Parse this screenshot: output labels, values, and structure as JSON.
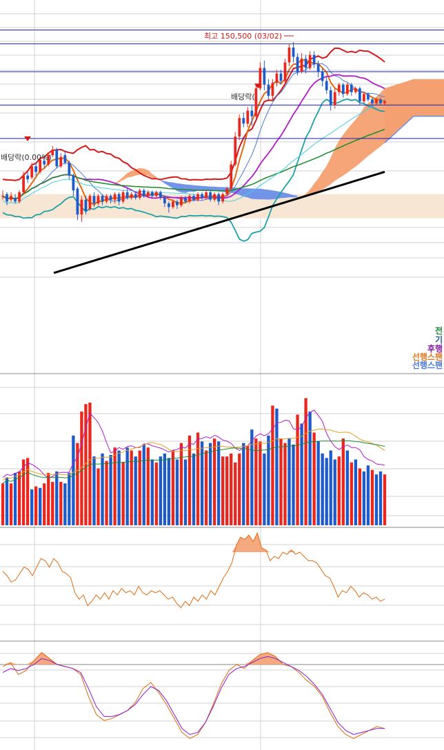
{
  "annotations": {
    "high_label": "최고 150,500 (03/02)",
    "dividend_label_left": "배당락(0.00%)",
    "dividend_label_right": "배당락(",
    "legend_items": [
      {
        "text": "전",
        "color": "#1a8a3a"
      },
      {
        "text": "기",
        "color": "#1a5aa8"
      },
      {
        "text": "후행",
        "color": "#8a1aa8"
      },
      {
        "text": "선행스팬",
        "color": "#e07820"
      },
      {
        "text": "선행스팬",
        "color": "#4a7ad8"
      }
    ]
  },
  "colors": {
    "up": "#e8281e",
    "down": "#1e5ac8",
    "grid": "#d0d0d0",
    "hline": "#1e1eb4",
    "cloud_up": "#f4a070",
    "cloud_down": "#6a8ee8",
    "band": "#f7e6d4"
  },
  "chart_data": [
    {
      "type": "candlestick",
      "panel": "price",
      "n_bars": 93,
      "candles": [
        {
          "o": 0.86,
          "c": 0.86,
          "h": 0.92,
          "l": 0.82
        },
        {
          "o": 0.88,
          "c": 0.8,
          "h": 0.9,
          "l": 0.76
        },
        {
          "o": 0.82,
          "c": 0.86,
          "h": 0.9,
          "l": 0.8
        },
        {
          "o": 0.84,
          "c": 0.8,
          "h": 0.88,
          "l": 0.78
        },
        {
          "o": 0.8,
          "c": 0.9,
          "h": 0.92,
          "l": 0.78
        },
        {
          "o": 0.9,
          "c": 1.08,
          "h": 1.12,
          "l": 0.88
        },
        {
          "o": 1.08,
          "c": 1.04,
          "h": 1.12,
          "l": 1.0
        },
        {
          "o": 1.06,
          "c": 1.18,
          "h": 1.22,
          "l": 1.04
        },
        {
          "o": 1.18,
          "c": 1.12,
          "h": 1.22,
          "l": 1.08
        },
        {
          "o": 1.12,
          "c": 1.25,
          "h": 1.28,
          "l": 1.1
        },
        {
          "o": 1.24,
          "c": 1.2,
          "h": 1.28,
          "l": 1.16
        },
        {
          "o": 1.2,
          "c": 1.3,
          "h": 1.33,
          "l": 1.18
        },
        {
          "o": 1.3,
          "c": 1.36,
          "h": 1.4,
          "l": 1.28
        },
        {
          "o": 1.36,
          "c": 1.18,
          "h": 1.38,
          "l": 1.16
        },
        {
          "o": 1.18,
          "c": 1.28,
          "h": 1.32,
          "l": 1.16
        },
        {
          "o": 1.3,
          "c": 1.22,
          "h": 1.34,
          "l": 1.2
        },
        {
          "o": 1.22,
          "c": 1.08,
          "h": 1.24,
          "l": 1.04
        },
        {
          "o": 1.08,
          "c": 0.92,
          "h": 1.1,
          "l": 0.86
        },
        {
          "o": 0.94,
          "c": 0.66,
          "h": 0.96,
          "l": 0.6
        },
        {
          "o": 0.66,
          "c": 0.82,
          "h": 0.86,
          "l": 0.58
        },
        {
          "o": 0.82,
          "c": 0.7,
          "h": 0.86,
          "l": 0.66
        },
        {
          "o": 0.72,
          "c": 0.86,
          "h": 0.88,
          "l": 0.7
        },
        {
          "o": 0.86,
          "c": 0.78,
          "h": 0.9,
          "l": 0.74
        },
        {
          "o": 0.78,
          "c": 0.86,
          "h": 0.88,
          "l": 0.76
        },
        {
          "o": 0.86,
          "c": 0.8,
          "h": 0.88,
          "l": 0.76
        },
        {
          "o": 0.8,
          "c": 0.86,
          "h": 0.88,
          "l": 0.78
        },
        {
          "o": 0.86,
          "c": 0.82,
          "h": 0.88,
          "l": 0.78
        },
        {
          "o": 0.82,
          "c": 0.88,
          "h": 0.9,
          "l": 0.78
        },
        {
          "o": 0.88,
          "c": 0.8,
          "h": 0.9,
          "l": 0.76
        },
        {
          "o": 0.8,
          "c": 0.9,
          "h": 0.92,
          "l": 0.78
        },
        {
          "o": 0.9,
          "c": 0.84,
          "h": 0.94,
          "l": 0.82
        },
        {
          "o": 0.84,
          "c": 0.88,
          "h": 0.9,
          "l": 0.82
        },
        {
          "o": 0.88,
          "c": 0.84,
          "h": 0.9,
          "l": 0.82
        },
        {
          "o": 0.84,
          "c": 0.92,
          "h": 0.94,
          "l": 0.82
        },
        {
          "o": 0.92,
          "c": 0.86,
          "h": 0.94,
          "l": 0.84
        },
        {
          "o": 0.86,
          "c": 0.9,
          "h": 0.92,
          "l": 0.84
        },
        {
          "o": 0.9,
          "c": 0.86,
          "h": 0.92,
          "l": 0.84
        },
        {
          "o": 0.86,
          "c": 0.9,
          "h": 0.92,
          "l": 0.84
        },
        {
          "o": 0.9,
          "c": 0.84,
          "h": 0.92,
          "l": 0.82
        },
        {
          "o": 0.84,
          "c": 0.78,
          "h": 0.86,
          "l": 0.74
        },
        {
          "o": 0.78,
          "c": 0.74,
          "h": 0.8,
          "l": 0.68
        },
        {
          "o": 0.74,
          "c": 0.8,
          "h": 0.82,
          "l": 0.72
        },
        {
          "o": 0.8,
          "c": 0.76,
          "h": 0.82,
          "l": 0.72
        },
        {
          "o": 0.76,
          "c": 0.84,
          "h": 0.86,
          "l": 0.74
        },
        {
          "o": 0.84,
          "c": 0.8,
          "h": 0.86,
          "l": 0.78
        },
        {
          "o": 0.8,
          "c": 0.86,
          "h": 0.88,
          "l": 0.78
        },
        {
          "o": 0.86,
          "c": 0.82,
          "h": 0.88,
          "l": 0.8
        },
        {
          "o": 0.82,
          "c": 0.88,
          "h": 0.9,
          "l": 0.8
        },
        {
          "o": 0.88,
          "c": 0.84,
          "h": 0.9,
          "l": 0.82
        },
        {
          "o": 0.84,
          "c": 0.9,
          "h": 0.92,
          "l": 0.82
        },
        {
          "o": 0.9,
          "c": 0.82,
          "h": 0.92,
          "l": 0.8
        },
        {
          "o": 0.82,
          "c": 0.88,
          "h": 0.9,
          "l": 0.8
        },
        {
          "o": 0.88,
          "c": 0.8,
          "h": 0.9,
          "l": 0.76
        },
        {
          "o": 0.8,
          "c": 0.88,
          "h": 0.9,
          "l": 0.78
        },
        {
          "o": 0.88,
          "c": 0.94,
          "h": 0.96,
          "l": 0.86
        },
        {
          "o": 0.94,
          "c": 1.2,
          "h": 1.24,
          "l": 0.92
        },
        {
          "o": 1.2,
          "c": 1.5,
          "h": 1.55,
          "l": 1.18
        },
        {
          "o": 1.5,
          "c": 1.7,
          "h": 1.74,
          "l": 1.46
        },
        {
          "o": 1.7,
          "c": 1.64,
          "h": 1.76,
          "l": 1.6
        },
        {
          "o": 1.64,
          "c": 1.78,
          "h": 1.82,
          "l": 1.6
        },
        {
          "o": 1.78,
          "c": 1.72,
          "h": 1.84,
          "l": 1.62
        },
        {
          "o": 1.72,
          "c": 2.02,
          "h": 2.06,
          "l": 1.7
        },
        {
          "o": 2.02,
          "c": 2.24,
          "h": 2.3,
          "l": 2.0
        },
        {
          "o": 2.24,
          "c": 2.06,
          "h": 2.32,
          "l": 2.0
        },
        {
          "o": 2.06,
          "c": 1.94,
          "h": 2.12,
          "l": 1.9
        },
        {
          "o": 1.94,
          "c": 2.08,
          "h": 2.12,
          "l": 1.9
        },
        {
          "o": 2.08,
          "c": 2.18,
          "h": 2.22,
          "l": 2.04
        },
        {
          "o": 2.18,
          "c": 2.1,
          "h": 2.22,
          "l": 2.06
        },
        {
          "o": 2.1,
          "c": 2.3,
          "h": 2.34,
          "l": 2.08
        },
        {
          "o": 2.3,
          "c": 2.46,
          "h": 2.5,
          "l": 2.26
        },
        {
          "o": 2.46,
          "c": 2.36,
          "h": 2.52,
          "l": 2.3
        },
        {
          "o": 2.36,
          "c": 2.2,
          "h": 2.4,
          "l": 2.16
        },
        {
          "o": 2.2,
          "c": 2.34,
          "h": 2.4,
          "l": 2.18
        },
        {
          "o": 2.34,
          "c": 2.24,
          "h": 2.38,
          "l": 2.18
        },
        {
          "o": 2.24,
          "c": 2.38,
          "h": 2.42,
          "l": 2.22
        },
        {
          "o": 2.38,
          "c": 2.28,
          "h": 2.42,
          "l": 2.24
        },
        {
          "o": 2.28,
          "c": 2.2,
          "h": 2.32,
          "l": 2.14
        },
        {
          "o": 2.2,
          "c": 2.1,
          "h": 2.24,
          "l": 2.04
        },
        {
          "o": 2.1,
          "c": 2.0,
          "h": 2.14,
          "l": 1.96
        },
        {
          "o": 2.0,
          "c": 1.84,
          "h": 2.04,
          "l": 1.78
        },
        {
          "o": 1.84,
          "c": 1.98,
          "h": 2.02,
          "l": 1.8
        },
        {
          "o": 1.98,
          "c": 2.06,
          "h": 2.08,
          "l": 1.94
        },
        {
          "o": 2.06,
          "c": 1.96,
          "h": 2.08,
          "l": 1.92
        },
        {
          "o": 1.96,
          "c": 2.06,
          "h": 2.08,
          "l": 1.94
        },
        {
          "o": 2.06,
          "c": 1.98,
          "h": 2.08,
          "l": 1.94
        },
        {
          "o": 1.98,
          "c": 2.02,
          "h": 2.04,
          "l": 1.96
        },
        {
          "o": 2.02,
          "c": 1.88,
          "h": 2.04,
          "l": 1.84
        },
        {
          "o": 1.88,
          "c": 1.96,
          "h": 1.98,
          "l": 1.86
        },
        {
          "o": 1.96,
          "c": 1.9,
          "h": 1.98,
          "l": 1.88
        },
        {
          "o": 1.9,
          "c": 1.86,
          "h": 1.92,
          "l": 1.82
        },
        {
          "o": 1.86,
          "c": 1.9,
          "h": 1.92,
          "l": 1.84
        },
        {
          "o": 1.9,
          "c": 1.86,
          "h": 1.92,
          "l": 1.84
        },
        {
          "o": 1.86,
          "c": 1.88,
          "h": 1.9,
          "l": 1.84
        }
      ],
      "horizontal_levels": [
        2.65,
        2.5,
        2.2,
        1.84,
        1.48
      ],
      "ylim": [
        0.0,
        2.75
      ]
    },
    {
      "type": "bar",
      "panel": "volume",
      "values": [
        0.28,
        0.32,
        0.28,
        0.35,
        0.36,
        0.44,
        0.45,
        0.24,
        0.26,
        0.25,
        0.28,
        0.35,
        0.29,
        0.36,
        0.29,
        0.28,
        0.35,
        0.6,
        0.55,
        0.76,
        0.81,
        0.82,
        0.46,
        0.38,
        0.48,
        0.43,
        0.47,
        0.52,
        0.5,
        0.42,
        0.52,
        0.5,
        0.46,
        0.5,
        0.54,
        0.52,
        0.44,
        0.42,
        0.46,
        0.48,
        0.45,
        0.5,
        0.44,
        0.55,
        0.44,
        0.6,
        0.48,
        0.62,
        0.56,
        0.5,
        0.55,
        0.58,
        0.56,
        0.46,
        0.46,
        0.48,
        0.42,
        0.48,
        0.55,
        0.53,
        0.64,
        0.58,
        0.56,
        0.48,
        0.6,
        0.8,
        0.78,
        0.58,
        0.55,
        0.58,
        0.54,
        0.74,
        0.68,
        0.85,
        0.76,
        0.62,
        0.56,
        0.48,
        0.45,
        0.5,
        0.44,
        0.46,
        0.58,
        0.5,
        0.42,
        0.44,
        0.38,
        0.36,
        0.4,
        0.37,
        0.34,
        0.36,
        0.34
      ],
      "up_flags": [
        1,
        0,
        1,
        0,
        1,
        1,
        1,
        0,
        1,
        0,
        1,
        1,
        1,
        0,
        1,
        0,
        0,
        0,
        1,
        1,
        1,
        1,
        0,
        1,
        0,
        1,
        0,
        1,
        0,
        1,
        0,
        1,
        0,
        1,
        0,
        1,
        0,
        1,
        0,
        0,
        0,
        1,
        0,
        1,
        0,
        1,
        0,
        1,
        0,
        1,
        0,
        1,
        0,
        1,
        1,
        1,
        1,
        1,
        0,
        1,
        0,
        1,
        1,
        0,
        0,
        1,
        0,
        1,
        1,
        0,
        0,
        1,
        0,
        1,
        0,
        1,
        0,
        0,
        0,
        0,
        0,
        1,
        1,
        0,
        1,
        0,
        1,
        0,
        0,
        1,
        0,
        0,
        1
      ],
      "ylim": [
        0,
        1
      ]
    },
    {
      "type": "line",
      "panel": "oscillator-1",
      "values": [
        0.62,
        0.58,
        0.52,
        0.54,
        0.6,
        0.66,
        0.64,
        0.58,
        0.66,
        0.74,
        0.72,
        0.66,
        0.74,
        0.7,
        0.62,
        0.6,
        0.56,
        0.42,
        0.36,
        0.4,
        0.3,
        0.34,
        0.4,
        0.36,
        0.42,
        0.36,
        0.44,
        0.4,
        0.46,
        0.42,
        0.44,
        0.4,
        0.48,
        0.42,
        0.4,
        0.44,
        0.42,
        0.44,
        0.4,
        0.36,
        0.38,
        0.32,
        0.28,
        0.34,
        0.3,
        0.38,
        0.34,
        0.4,
        0.36,
        0.44,
        0.4,
        0.48,
        0.56,
        0.62,
        0.7,
        0.86,
        0.94,
        0.92,
        0.96,
        0.9,
        0.98,
        0.84,
        0.82,
        0.72,
        0.76,
        0.74,
        0.8,
        0.78,
        0.82,
        0.78,
        0.8,
        0.76,
        0.72,
        0.72,
        0.7,
        0.64,
        0.58,
        0.56,
        0.48,
        0.38,
        0.44,
        0.42,
        0.48,
        0.44,
        0.38,
        0.42,
        0.4,
        0.36,
        0.38,
        0.34,
        0.36
      ],
      "threshold_high": 0.8,
      "ylim": [
        0,
        1
      ]
    },
    {
      "type": "line",
      "panel": "oscillator-2",
      "series": [
        {
          "values": [
            0.78,
            0.82,
            0.7,
            0.74,
            0.84,
            0.92,
            0.86,
            0.8,
            0.78,
            0.76,
            0.7,
            0.48,
            0.3,
            0.24,
            0.26,
            0.3,
            0.34,
            0.42,
            0.56,
            0.62,
            0.52,
            0.4,
            0.26,
            0.12,
            0.06,
            0.1,
            0.22,
            0.4,
            0.6,
            0.74,
            0.8,
            0.76,
            0.84,
            0.9,
            0.92,
            0.88,
            0.8,
            0.78,
            0.72,
            0.64,
            0.58,
            0.48,
            0.32,
            0.18,
            0.1,
            0.06,
            0.1,
            0.14,
            0.18,
            0.16
          ]
        },
        {
          "values": [
            0.72,
            0.76,
            0.74,
            0.76,
            0.8,
            0.86,
            0.84,
            0.8,
            0.78,
            0.76,
            0.72,
            0.56,
            0.38,
            0.28,
            0.28,
            0.3,
            0.34,
            0.4,
            0.5,
            0.58,
            0.54,
            0.44,
            0.3,
            0.16,
            0.1,
            0.12,
            0.22,
            0.38,
            0.56,
            0.7,
            0.76,
            0.78,
            0.82,
            0.86,
            0.88,
            0.86,
            0.82,
            0.78,
            0.74,
            0.68,
            0.6,
            0.5,
            0.36,
            0.22,
            0.14,
            0.1,
            0.12,
            0.14,
            0.16,
            0.16
          ]
        }
      ],
      "threshold_high": 0.8,
      "ylim": [
        0,
        1
      ]
    }
  ]
}
